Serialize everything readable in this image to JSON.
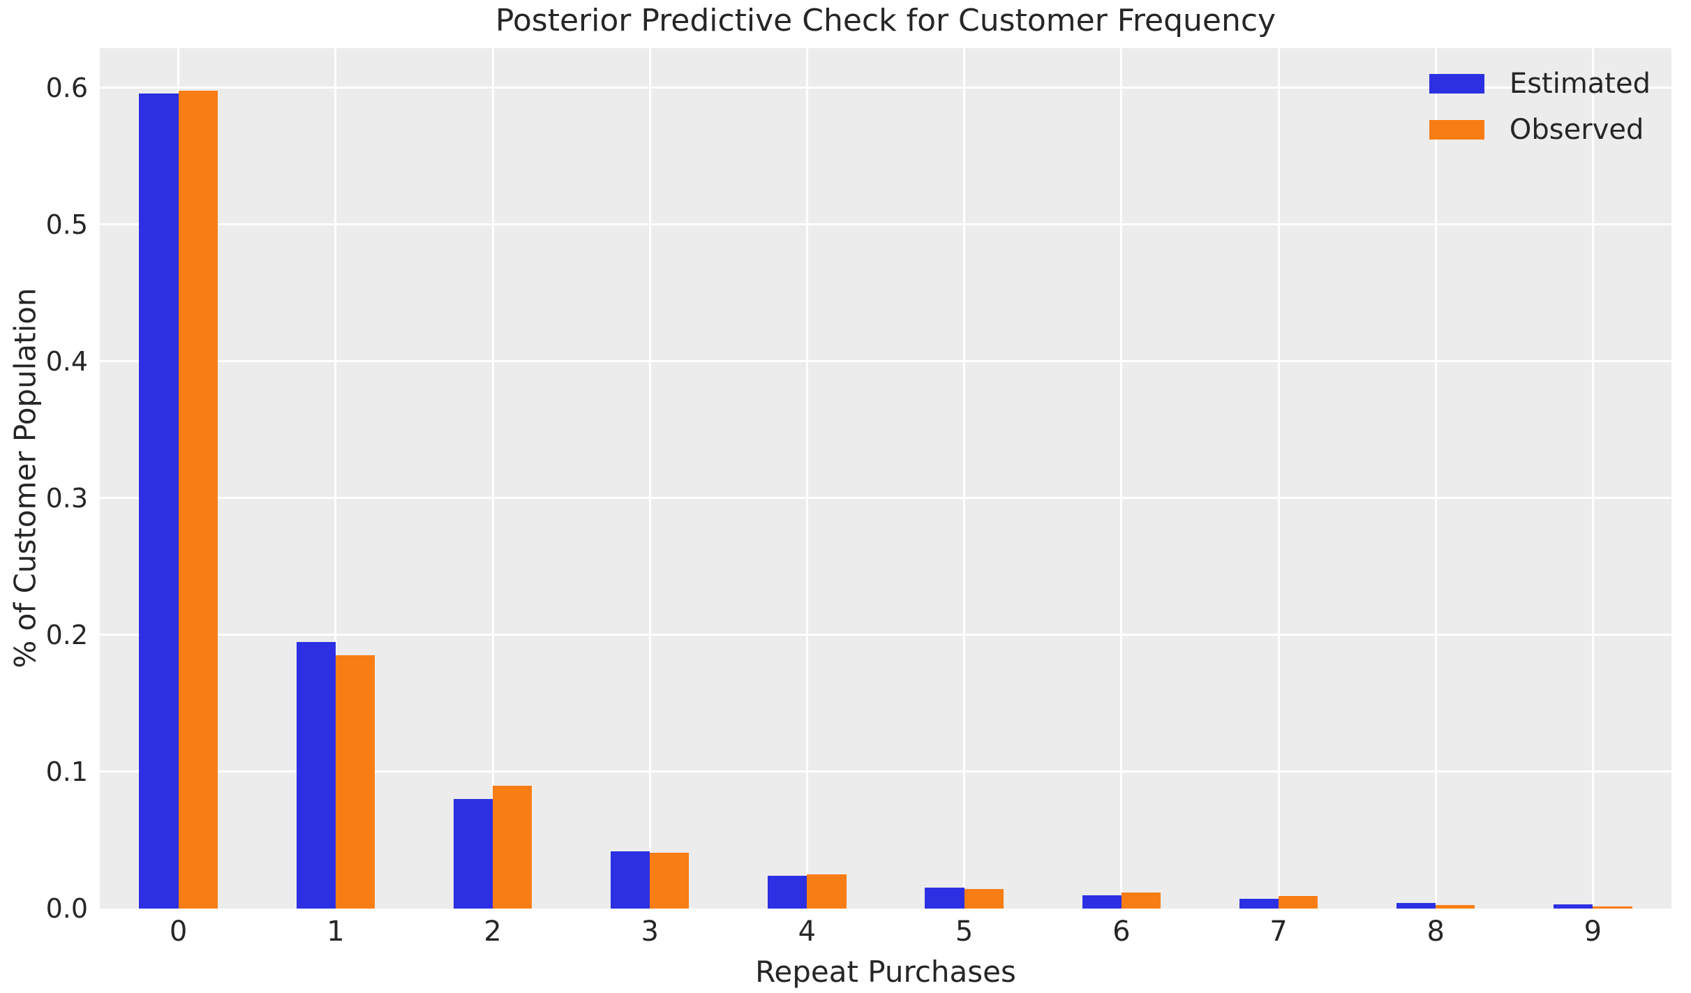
{
  "figure": {
    "title": "Posterior Predictive Check for Customer Frequency",
    "xlabel": "Repeat Purchases",
    "ylabel": "% of Customer Population"
  },
  "colors": {
    "estimated": "#2c30e2",
    "observed": "#f87d14",
    "plot_background": "#ececec",
    "gridline": "#ffffff",
    "text": "#262626",
    "figure_background": "#ffffff"
  },
  "chart_data": {
    "type": "bar",
    "title": "Posterior Predictive Check for Customer Frequency",
    "xlabel": "Repeat Purchases",
    "ylabel": "% of Customer Population",
    "categories": [
      "0",
      "1",
      "2",
      "3",
      "4",
      "5",
      "6",
      "7",
      "8",
      "9"
    ],
    "series": [
      {
        "name": "Estimated",
        "color": "#2c30e2",
        "values": [
          0.596,
          0.195,
          0.08,
          0.042,
          0.024,
          0.0155,
          0.0095,
          0.007,
          0.004,
          0.003
        ]
      },
      {
        "name": "Observed",
        "color": "#f87d14",
        "values": [
          0.598,
          0.185,
          0.09,
          0.041,
          0.025,
          0.0145,
          0.0115,
          0.009,
          0.0025,
          0.0015
        ]
      }
    ],
    "ylim": [
      0,
      0.629
    ],
    "ytick_values": [
      0.0,
      0.1,
      0.2,
      0.3,
      0.4,
      0.5,
      0.6
    ],
    "ytick_labels": [
      "0.0",
      "0.1",
      "0.2",
      "0.3",
      "0.4",
      "0.5",
      "0.6"
    ],
    "grid": true,
    "legend_position": "upper right",
    "bar_width_fraction": 0.25
  }
}
